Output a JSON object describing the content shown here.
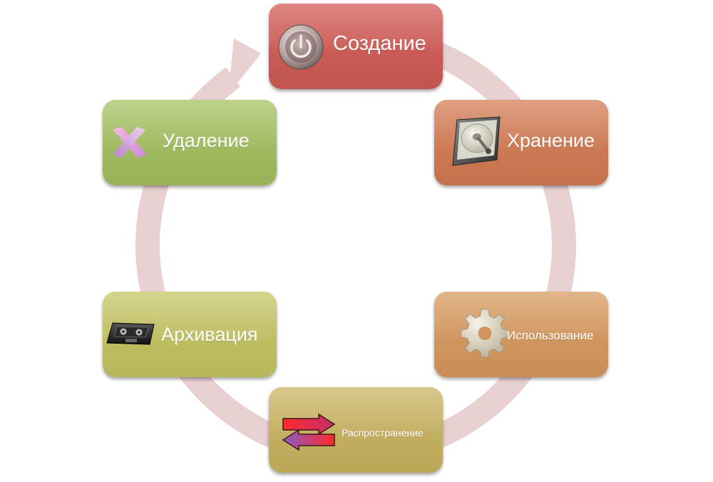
{
  "colors": {
    "ring": "#e8d0d2",
    "create": "#c95a55",
    "store": "#cc7a55",
    "use": "#cf9660",
    "share": "#c4b062",
    "archive": "#bfbf64",
    "delete": "#a2bb62",
    "label": "#ffffff"
  },
  "cycle": {
    "direction": "clockwise",
    "stages": [
      {
        "id": "create",
        "label": "Создание",
        "icon": "power-button-icon"
      },
      {
        "id": "store",
        "label": "Хранение",
        "icon": "hard-drive-icon"
      },
      {
        "id": "use",
        "label": "Использование",
        "icon": "gear-icon"
      },
      {
        "id": "share",
        "label": "Распространение",
        "icon": "exchange-arrows-icon"
      },
      {
        "id": "archive",
        "label": "Архивация",
        "icon": "cassette-tape-icon"
      },
      {
        "id": "delete",
        "label": "Удаление",
        "icon": "delete-x-icon"
      }
    ]
  }
}
